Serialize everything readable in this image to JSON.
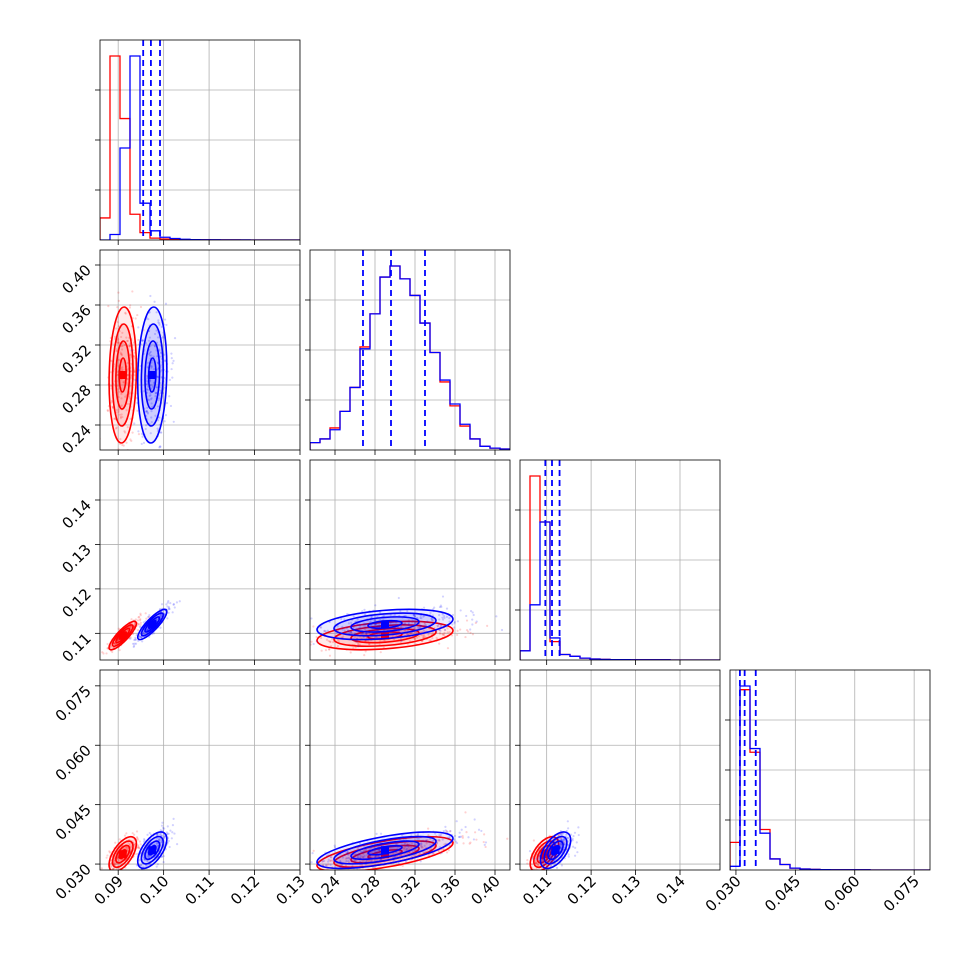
{
  "chart_data": {
    "type": "corner",
    "title": "",
    "parameters": [
      {
        "range": [
          0.086,
          0.13
        ],
        "ticks": [
          "0.09",
          "0.10",
          "0.11",
          "0.12",
          "0.13"
        ]
      },
      {
        "range": [
          0.215,
          0.415
        ],
        "ticks": [
          "0.24",
          "0.28",
          "0.32",
          "0.36",
          "0.40"
        ]
      },
      {
        "range": [
          0.104,
          0.149
        ],
        "ticks": [
          "0.11",
          "0.12",
          "0.13",
          "0.14"
        ]
      },
      {
        "range": [
          0.0285,
          0.079
        ],
        "ticks": [
          "0.030",
          "0.045",
          "0.060",
          "0.075"
        ]
      }
    ],
    "series": [
      {
        "color": "#ff0000",
        "means": [
          0.091,
          0.29,
          0.1095,
          0.0325
        ],
        "sigmas": [
          0.0015,
          0.034,
          0.0016,
          0.0022
        ],
        "correlations": [
          [
            0,
            1,
            0.1
          ],
          [
            0,
            2,
            0.85
          ],
          [
            0,
            3,
            0.6
          ],
          [
            1,
            2,
            0.35
          ],
          [
            1,
            3,
            0.65
          ],
          [
            2,
            3,
            0.55
          ]
        ],
        "quantiles": [
          [],
          [],
          [],
          []
        ],
        "hist": [
          [
            0.12,
            1.0,
            0.66,
            0.14,
            0.04,
            0.01,
            0.005,
            0.003,
            0.002,
            0.001,
            0.001,
            0.0005,
            0.0005,
            0.0003,
            0.0002,
            0.0002,
            0.0001,
            0.0001,
            0,
            0
          ],
          [
            0.04,
            0.06,
            0.12,
            0.21,
            0.34,
            0.56,
            0.74,
            0.94,
            1.0,
            0.93,
            0.84,
            0.69,
            0.53,
            0.37,
            0.24,
            0.13,
            0.06,
            0.02,
            0.01,
            0.005
          ],
          [
            0.05,
            1.0,
            0.75,
            0.1,
            0.03,
            0.02,
            0.01,
            0.005,
            0.003,
            0.002,
            0.002,
            0.001,
            0.001,
            0.001,
            0.001,
            0,
            0,
            0,
            0,
            0
          ],
          [
            0.15,
            0.98,
            0.64,
            0.22,
            0.06,
            0.03,
            0.01,
            0.005,
            0.003,
            0.002,
            0.001,
            0.001,
            0.001,
            0.001,
            0,
            0,
            0,
            0,
            0,
            0
          ]
        ]
      },
      {
        "color": "#0000ff",
        "means": [
          0.0975,
          0.29,
          0.112,
          0.0335
        ],
        "sigmas": [
          0.0016,
          0.034,
          0.0017,
          0.0023
        ],
        "correlations": [
          [
            0,
            1,
            0.1
          ],
          [
            0,
            2,
            0.85
          ],
          [
            0,
            3,
            0.6
          ],
          [
            1,
            2,
            0.35
          ],
          [
            1,
            3,
            0.65
          ],
          [
            2,
            3,
            0.55
          ]
        ],
        "quantiles": [
          [
            0.0955,
            0.0972,
            0.0992
          ],
          [
            0.268,
            0.296,
            0.33
          ],
          [
            0.1097,
            0.1112,
            0.1129
          ],
          [
            0.031,
            0.0322,
            0.035
          ]
        ],
        "hist": [
          [
            0.0,
            0.03,
            0.5,
            1.0,
            0.2,
            0.05,
            0.015,
            0.008,
            0.004,
            0.002,
            0.001,
            0.001,
            0.0005,
            0.0005,
            0.0003,
            0.0002,
            0.0001,
            0.0001,
            0,
            0
          ],
          [
            0.04,
            0.06,
            0.11,
            0.21,
            0.34,
            0.55,
            0.74,
            0.94,
            1.0,
            0.93,
            0.84,
            0.69,
            0.53,
            0.38,
            0.25,
            0.14,
            0.06,
            0.02,
            0.01,
            0.005
          ],
          [
            0.05,
            0.3,
            0.75,
            0.12,
            0.03,
            0.02,
            0.01,
            0.005,
            0.003,
            0.002,
            0.002,
            0.001,
            0.001,
            0.001,
            0.001,
            0,
            0,
            0,
            0,
            0
          ],
          [
            0.02,
            1.0,
            0.66,
            0.2,
            0.06,
            0.03,
            0.01,
            0.005,
            0.003,
            0.002,
            0.001,
            0.001,
            0.001,
            0.001,
            0,
            0,
            0,
            0,
            0,
            0
          ]
        ]
      }
    ],
    "grid": true,
    "legend": "none"
  }
}
